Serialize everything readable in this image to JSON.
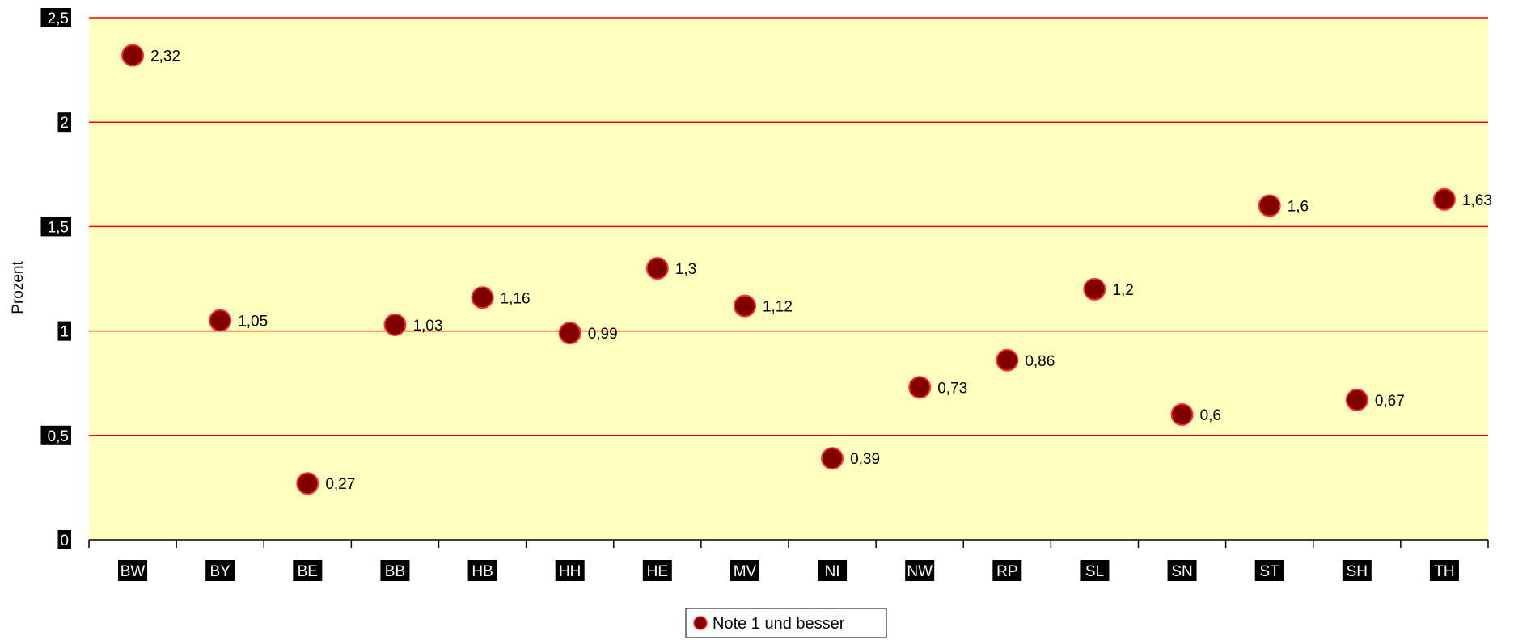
{
  "chart_data": {
    "type": "scatter",
    "categories": [
      "BW",
      "BY",
      "BE",
      "BB",
      "HB",
      "HH",
      "HE",
      "MV",
      "NI",
      "NW",
      "RP",
      "SL",
      "SN",
      "ST",
      "SH",
      "TH"
    ],
    "series": [
      {
        "name": "Note 1 und besser",
        "values": [
          2.32,
          1.05,
          0.27,
          1.03,
          1.16,
          0.99,
          1.3,
          1.12,
          0.39,
          0.73,
          0.86,
          1.2,
          0.6,
          1.6,
          0.67,
          1.63
        ],
        "labels": [
          "2,32",
          "1,05",
          "0,27",
          "1,03",
          "1,16",
          "0,99",
          "1,3",
          "1,12",
          "0,39",
          "0,73",
          "0,86",
          "1,2",
          "0,6",
          "1,6",
          "0,67",
          "1,63"
        ]
      }
    ],
    "title": "",
    "xlabel": "",
    "ylabel": "Prozent",
    "ylim": [
      0,
      2.5
    ],
    "yticks": [
      0,
      0.5,
      1,
      1.5,
      2,
      2.5
    ],
    "ytick_labels": [
      "0",
      "0,5",
      "1",
      "1,5",
      "2",
      "2,5"
    ],
    "grid": true,
    "legend_position": "bottom-center",
    "colors": {
      "plot_background": "#ffffc0",
      "gridline": "#ff0000",
      "marker_fill": "#800000",
      "marker_edge": "#ff3030",
      "tick_label_background": "#000000",
      "tick_label_text": "#ffffff"
    }
  }
}
